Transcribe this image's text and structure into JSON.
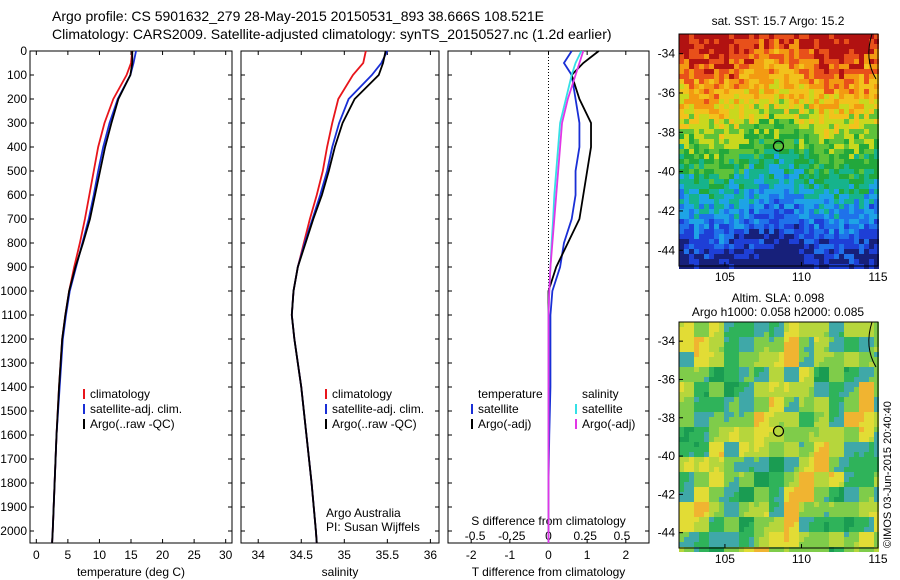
{
  "header": {
    "line1": "Argo profile: CS 5901632_279 28-May-2015 20150531_893 38.666S 108.521E",
    "line2": "Climatology: CARS2009. Satellite-adjusted climatology: synTS_20150527.nc (1.2d earlier)"
  },
  "colors": {
    "climatology": "#e8151b",
    "satellite": "#1a2fd6",
    "argo": "#000000",
    "s_satellite": "#35e0e6",
    "s_argo": "#e236e6"
  },
  "legend": {
    "climatology": "climatology",
    "satellite": "satellite-adj. clim.",
    "argo": "Argo(..raw -QC)",
    "diff_temperature": "temperature",
    "diff_salinity": "salinity",
    "diff_satellite": "satellite",
    "diff_argo": "Argo(-adj)"
  },
  "credits": {
    "org": "Argo Australia",
    "pi": "PI: Susan Wijffels"
  },
  "maps": {
    "sst_title": "sat. SST: 15.7 Argo: 15.2",
    "sla_title1": "Altim. SLA: 0.098",
    "sla_title2": "Argo h1000: 0.058 h2000: 0.085",
    "stamp": "©IMOS 03-Jun-2015 20:40:40",
    "x_ticks": [
      "105",
      "110",
      "115"
    ],
    "sst_y_ticks": [
      "-34",
      "-36",
      "-38",
      "-40",
      "-42",
      "-44"
    ],
    "sla_y_ticks": [
      "-34",
      "-36",
      "-38",
      "-40",
      "-42",
      "-44"
    ],
    "float_position": {
      "lon": 108.5,
      "lat": -38.7
    }
  },
  "chart_data": [
    {
      "type": "line",
      "xlabel": "temperature (deg C)",
      "ylabel": "",
      "xlim": [
        -1,
        31
      ],
      "ylim": [
        2050,
        0
      ],
      "x_ticks": [
        "0",
        "5",
        "10",
        "15",
        "20",
        "25",
        "30"
      ],
      "y_ticks": [
        "0",
        "100",
        "200",
        "300",
        "400",
        "500",
        "600",
        "700",
        "800",
        "900",
        "1000",
        "1100",
        "1200",
        "1300",
        "1400",
        "1500",
        "1600",
        "1700",
        "1800",
        "1900",
        "2000"
      ],
      "series": [
        {
          "name": "climatology",
          "color": "climatology",
          "depth": [
            0,
            50,
            100,
            200,
            300,
            400,
            500,
            600,
            700,
            800,
            900,
            1000,
            1100,
            1200,
            1400,
            1600,
            1800,
            2000,
            2050
          ],
          "values": [
            15.2,
            15.0,
            14.3,
            12.2,
            10.8,
            9.8,
            9.1,
            8.4,
            7.7,
            6.9,
            6.0,
            5.2,
            4.6,
            4.1,
            3.6,
            3.2,
            2.9,
            2.6,
            2.5
          ]
        },
        {
          "name": "satellite-adj. clim.",
          "color": "satellite",
          "depth": [
            0,
            50,
            100,
            200,
            300,
            400,
            500,
            600,
            700,
            800,
            900,
            1000,
            1100,
            1200,
            1400,
            1600,
            1800,
            2000,
            2050
          ],
          "values": [
            15.8,
            15.4,
            14.9,
            12.9,
            11.6,
            10.6,
            9.8,
            9.1,
            8.3,
            7.3,
            6.3,
            5.3,
            4.7,
            4.2,
            3.7,
            3.2,
            2.9,
            2.6,
            2.5
          ]
        },
        {
          "name": "Argo(..raw -QC)",
          "color": "argo",
          "depth": [
            0,
            50,
            100,
            200,
            300,
            400,
            500,
            600,
            700,
            800,
            900,
            1000,
            1100,
            1200,
            1400,
            1600,
            1800,
            2000,
            2050
          ],
          "values": [
            15.2,
            15.2,
            14.9,
            13.0,
            11.9,
            10.9,
            10.1,
            9.3,
            8.5,
            7.4,
            6.2,
            5.2,
            4.6,
            4.1,
            3.6,
            3.2,
            2.9,
            2.6,
            2.5
          ]
        }
      ]
    },
    {
      "type": "line",
      "xlabel": "salinity",
      "ylabel": "",
      "xlim": [
        33.8,
        36.1
      ],
      "ylim": [
        2050,
        0
      ],
      "x_ticks": [
        "34",
        "34.5",
        "35",
        "35.5",
        "36"
      ],
      "series": [
        {
          "name": "climatology",
          "color": "climatology",
          "depth": [
            0,
            50,
            100,
            200,
            300,
            400,
            500,
            600,
            700,
            800,
            900,
            1000,
            1100,
            1200,
            1400,
            1600,
            1800,
            2000,
            2050
          ],
          "values": [
            35.25,
            35.22,
            35.1,
            34.93,
            34.86,
            34.8,
            34.75,
            34.68,
            34.6,
            34.53,
            34.46,
            34.41,
            34.39,
            34.42,
            34.5,
            34.56,
            34.62,
            34.67,
            34.68
          ]
        },
        {
          "name": "satellite-adj. clim.",
          "color": "satellite",
          "depth": [
            0,
            50,
            100,
            200,
            300,
            400,
            500,
            600,
            700,
            800,
            900,
            1000,
            1100,
            1200,
            1400,
            1600,
            1800,
            2000,
            2050
          ],
          "values": [
            35.5,
            35.43,
            35.32,
            35.05,
            34.94,
            34.86,
            34.8,
            34.72,
            34.63,
            34.54,
            34.46,
            34.41,
            34.39,
            34.42,
            34.5,
            34.56,
            34.62,
            34.67,
            34.68
          ]
        },
        {
          "name": "Argo(..raw -QC)",
          "color": "argo",
          "depth": [
            0,
            50,
            100,
            200,
            300,
            400,
            500,
            600,
            700,
            800,
            900,
            1000,
            1100,
            1200,
            1400,
            1600,
            1800,
            2000,
            2050
          ],
          "values": [
            35.48,
            35.45,
            35.4,
            35.12,
            34.98,
            34.89,
            34.82,
            34.74,
            34.64,
            34.55,
            34.46,
            34.41,
            34.39,
            34.42,
            34.5,
            34.56,
            34.62,
            34.67,
            34.68
          ]
        }
      ]
    },
    {
      "type": "line",
      "xlabel": "T difference from climatology",
      "title_bottom": "S difference from climatology",
      "ylabel": "",
      "xlim": [
        -2.6,
        2.6
      ],
      "ylim": [
        2050,
        0
      ],
      "x_ticks": [
        "-2",
        "-1",
        "0",
        "1",
        "2"
      ],
      "x2_ticks": [
        [
          "-0.5",
          -1.9
        ],
        [
          "-0.25",
          -0.95
        ],
        [
          "0",
          0.0
        ],
        [
          "0.25",
          0.95
        ],
        [
          "0.5",
          1.9
        ]
      ],
      "zero_line": true,
      "series": [
        {
          "name": "temperature satellite",
          "color": "satellite",
          "depth": [
            0,
            50,
            100,
            200,
            300,
            400,
            500,
            600,
            700,
            800,
            900,
            1000,
            1100,
            1200,
            1400,
            1600,
            1800,
            2000,
            2050
          ],
          "values": [
            0.6,
            0.4,
            0.6,
            0.7,
            0.8,
            0.8,
            0.7,
            0.7,
            0.6,
            0.4,
            0.3,
            0.1,
            0.05,
            0.05,
            0.05,
            0.02,
            0.0,
            0.0,
            0.0
          ]
        },
        {
          "name": "temperature Argo(-adj)",
          "color": "argo",
          "depth": [
            0,
            50,
            100,
            200,
            300,
            400,
            500,
            600,
            700,
            800,
            900,
            1000,
            1100,
            1200,
            1400,
            1600,
            1800,
            2000,
            2050
          ],
          "values": [
            1.3,
            0.9,
            0.6,
            0.8,
            1.1,
            1.1,
            1.0,
            0.9,
            0.8,
            0.5,
            0.2,
            0.0,
            0.0,
            0.0,
            0.0,
            0.0,
            0.0,
            0.0,
            0.0
          ]
        },
        {
          "name": "salinity satellite",
          "color": "s_satellite",
          "depth": [
            0,
            50,
            100,
            200,
            300,
            400,
            500,
            600,
            700,
            800,
            900,
            1000,
            1100,
            1200,
            1400,
            1600,
            1800,
            2000,
            2050
          ],
          "values": [
            0.85,
            0.7,
            0.6,
            0.45,
            0.3,
            0.25,
            0.2,
            0.15,
            0.12,
            0.08,
            0.05,
            0.02,
            0.0,
            0.0,
            0.0,
            0.0,
            0.0,
            0.0,
            0.0
          ]
        },
        {
          "name": "salinity Argo(-adj)",
          "color": "s_argo",
          "depth": [
            0,
            50,
            100,
            200,
            300,
            400,
            500,
            600,
            700,
            800,
            900,
            1000,
            1100,
            1200,
            1400,
            1600,
            1800,
            2000,
            2050
          ],
          "values": [
            0.9,
            0.8,
            0.7,
            0.5,
            0.35,
            0.3,
            0.25,
            0.2,
            0.15,
            0.1,
            0.05,
            0.02,
            0.0,
            0.0,
            0.0,
            0.0,
            0.0,
            0.0,
            0.0
          ]
        }
      ]
    }
  ]
}
